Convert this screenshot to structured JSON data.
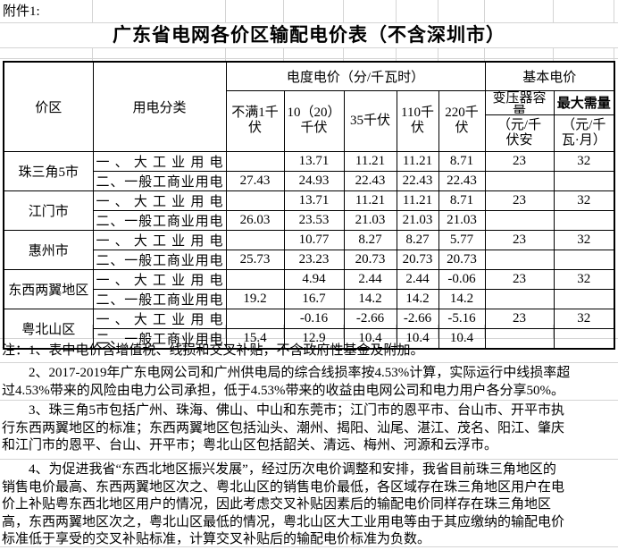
{
  "attachment_label": "附件1:",
  "title": "广东省电网各价区输配电价表（不含深圳市）",
  "table": {
    "headers": {
      "price_zone": "价区",
      "usage_class": "用电分类",
      "energy_price_group": "电度电价（分/千瓦时）",
      "basic_price_group": "基本电价",
      "voltage_levels": [
        "不满1千\n伏",
        "10（20）\n千伏",
        "35千伏",
        "110千\n伏",
        "220千\n伏"
      ],
      "transformer_capacity": "变压器容量",
      "transformer_capacity_unit": "（元/千\n伏安",
      "max_demand": "最大需量",
      "max_demand_unit": "（元/千\n瓦·月）"
    },
    "regions": [
      {
        "name": "珠三角5市",
        "rows": [
          {
            "cls": "一、大工业用电",
            "values": [
              "",
              "13.71",
              "11.21",
              "11.21",
              "8.71",
              "23",
              "32"
            ]
          },
          {
            "cls": "二、一般工商业用电",
            "values": [
              "27.43",
              "24.93",
              "22.43",
              "22.43",
              "22.43",
              "",
              ""
            ]
          }
        ]
      },
      {
        "name": "江门市",
        "rows": [
          {
            "cls": "一、大工业用电",
            "values": [
              "",
              "13.71",
              "11.21",
              "11.21",
              "8.71",
              "23",
              "32"
            ]
          },
          {
            "cls": "二、一般工商业用电",
            "values": [
              "26.03",
              "23.53",
              "21.03",
              "21.03",
              "21.03",
              "",
              ""
            ]
          }
        ]
      },
      {
        "name": "惠州市",
        "rows": [
          {
            "cls": "一、大工业用电",
            "values": [
              "",
              "10.77",
              "8.27",
              "8.27",
              "5.77",
              "23",
              "32"
            ]
          },
          {
            "cls": "二、一般工商业用电",
            "values": [
              "25.73",
              "23.23",
              "20.73",
              "20.73",
              "20.73",
              "",
              ""
            ]
          }
        ]
      },
      {
        "name": "东西两翼地区",
        "rows": [
          {
            "cls": "一、大工业用电",
            "values": [
              "",
              "4.94",
              "2.44",
              "2.44",
              "-0.06",
              "23",
              "32"
            ]
          },
          {
            "cls": "二、一般工商业用电",
            "values": [
              "19.2",
              "16.7",
              "14.2",
              "14.2",
              "14.2",
              "",
              ""
            ]
          }
        ]
      },
      {
        "name": "粤北山区",
        "rows": [
          {
            "cls": "一、大工业用电",
            "values": [
              "",
              "-0.16",
              "-2.66",
              "-2.66",
              "-5.16",
              "23",
              "32"
            ]
          },
          {
            "cls": "二、一般工商业用电",
            "values": [
              "15.4",
              "12.9",
              "10.4",
              "10.4",
              "10.4",
              "",
              ""
            ]
          }
        ]
      }
    ]
  },
  "notes": [
    "注：1、表中电价含增值税、线损和交叉补贴，不含政府性基金及附加。",
    "　　2、2017-2019年广东电网公司和广州供电局的综合线损率按4.53%计算，实际运行中线损率超\n过4.53%带来的风险由电力公司承担，低于4.53%带来的收益由电网公司和电力用户各分享50%。",
    "　　3、珠三角5市包括广州、珠海、佛山、中山和东莞市；江门市的恩平市、台山市、开平市执\n行东西两翼地区的标准；东西两翼地区包括汕头、潮州、揭阳、汕尾、湛江、茂名、阳江、肇庆\n和江门市的恩平、台山、开平市；粤北山区包括韶关、清远、梅州、河源和云浮市。",
    "　　4、为促进我省“东西北地区振兴发展”，经过历次电价调整和安排，我省目前珠三角地区的\n销售电价最高、东西两翼地区次之、粤北山区的销售电价最低，各区域存在珠三角地区用户在电\n价上补贴粤东西北地区用户的情况，因此考虑交叉补贴因素后的输配电价同样存在珠三角地区\n高，东西两翼地区次之，粤北山区最低的情况，粤北山区大工业用电等由于其应缴纳的输配电价\n标准低于享受的交叉补贴标准，计算交叉补贴后的输配电价标准为负数。"
  ]
}
